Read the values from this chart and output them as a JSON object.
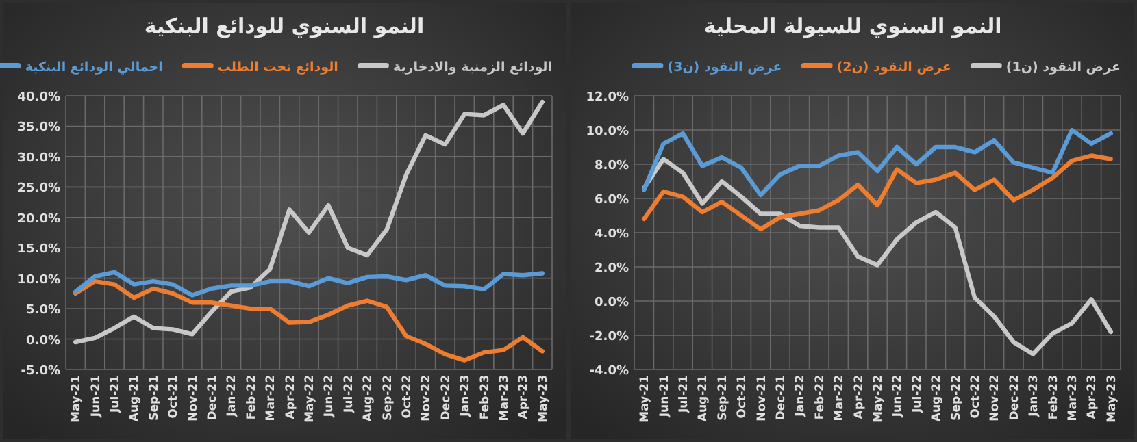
{
  "chart_data": [
    {
      "type": "line",
      "title": "النمو السنوي للودائع البنكية",
      "legend": "top",
      "grid": true,
      "categories": [
        "May-21",
        "Jun-21",
        "Jul-21",
        "Aug-21",
        "Sep-21",
        "Oct-21",
        "Nov-21",
        "Dec-21",
        "Jan-22",
        "Feb-22",
        "Mar-22",
        "Apr-22",
        "May-22",
        "Jun-22",
        "Jul-22",
        "Aug-22",
        "Sep-22",
        "Oct-22",
        "Nov-22",
        "Dec-22",
        "Jan-23",
        "Feb-23",
        "Mar-23",
        "Apr-23",
        "May-23"
      ],
      "ylim": [
        -5,
        40
      ],
      "yticks": [
        {
          "value": -5,
          "label": "-5.0%"
        },
        {
          "value": 0,
          "label": "0.0%"
        },
        {
          "value": 5,
          "label": "5.0%"
        },
        {
          "value": 10,
          "label": "10.0%"
        },
        {
          "value": 15,
          "label": "15.0%"
        },
        {
          "value": 20,
          "label": "20.0%"
        },
        {
          "value": 25,
          "label": "25.0%"
        },
        {
          "value": 30,
          "label": "30.0%"
        },
        {
          "value": 35,
          "label": "35.0%"
        },
        {
          "value": 40,
          "label": "40.0%"
        }
      ],
      "series": [
        {
          "name": "الودائع الزمنية والادخارية",
          "color": "#c8c8c8",
          "values": [
            -0.5,
            0.2,
            1.8,
            3.7,
            1.8,
            1.6,
            0.8,
            4.5,
            7.8,
            8.5,
            11.5,
            21.3,
            17.5,
            22.0,
            15.0,
            13.8,
            18.0,
            27.0,
            33.5,
            32.0,
            37.0,
            36.8,
            38.5,
            33.8,
            39.0
          ]
        },
        {
          "name": "الودائع تحت الطلب",
          "color": "#ed7d31",
          "values": [
            7.5,
            9.5,
            9.0,
            6.8,
            8.3,
            7.5,
            6.0,
            6.0,
            5.5,
            5.0,
            5.0,
            2.7,
            2.8,
            4.0,
            5.5,
            6.3,
            5.3,
            0.5,
            -0.8,
            -2.5,
            -3.5,
            -2.2,
            -1.8,
            0.3,
            -2.0
          ]
        },
        {
          "name": "اجمالي الودائع البنكية",
          "color": "#5b9bd5",
          "values": [
            7.8,
            10.3,
            11.0,
            9.0,
            9.5,
            9.0,
            7.2,
            8.3,
            8.8,
            8.8,
            9.5,
            9.5,
            8.7,
            10.0,
            9.2,
            10.2,
            10.3,
            9.7,
            10.5,
            8.8,
            8.7,
            8.2,
            10.7,
            10.5,
            10.8
          ]
        }
      ]
    },
    {
      "type": "line",
      "title": "النمو السنوي للسيولة المحلية",
      "legend": "top",
      "grid": true,
      "categories": [
        "May-21",
        "Jun-21",
        "Jul-21",
        "Aug-21",
        "Sep-21",
        "Oct-21",
        "Nov-21",
        "Dec-21",
        "Jan-22",
        "Feb-22",
        "Mar-22",
        "Apr-22",
        "May-22",
        "Jun-22",
        "Jul-22",
        "Aug-22",
        "Sep-22",
        "Oct-22",
        "Nov-22",
        "Dec-22",
        "Jan-23",
        "Feb-23",
        "Mar-23",
        "Apr-23",
        "May-23"
      ],
      "ylim": [
        -4,
        12
      ],
      "yticks": [
        {
          "value": -4,
          "label": "-4.0%"
        },
        {
          "value": -2,
          "label": "-2.0%"
        },
        {
          "value": 0,
          "label": "0.0%"
        },
        {
          "value": 2,
          "label": "2.0%"
        },
        {
          "value": 4,
          "label": "4.0%"
        },
        {
          "value": 6,
          "label": "6.0%"
        },
        {
          "value": 8,
          "label": "8.0%"
        },
        {
          "value": 10,
          "label": "10.0%"
        },
        {
          "value": 12,
          "label": "12.0%"
        }
      ],
      "series": [
        {
          "name": "عرض النقود (ن1)",
          "color": "#c8c8c8",
          "values": [
            6.6,
            8.3,
            7.5,
            5.7,
            7.0,
            6.1,
            5.1,
            5.1,
            4.4,
            4.3,
            4.3,
            2.6,
            2.1,
            3.6,
            4.6,
            5.2,
            4.3,
            0.2,
            -0.9,
            -2.4,
            -3.1,
            -1.9,
            -1.3,
            0.1,
            -1.8
          ]
        },
        {
          "name": "عرض النقود (ن2)",
          "color": "#ed7d31",
          "values": [
            4.8,
            6.4,
            6.1,
            5.2,
            5.8,
            5.0,
            4.2,
            4.9,
            5.1,
            5.3,
            5.9,
            6.8,
            5.6,
            7.7,
            6.9,
            7.1,
            7.5,
            6.5,
            7.1,
            5.9,
            6.5,
            7.2,
            8.2,
            8.5,
            8.3
          ]
        },
        {
          "name": "عرض النقود (ن3)",
          "color": "#5b9bd5",
          "values": [
            6.5,
            9.2,
            9.8,
            7.9,
            8.4,
            7.8,
            6.2,
            7.4,
            7.9,
            7.9,
            8.5,
            8.7,
            7.6,
            9.0,
            8.0,
            9.0,
            9.0,
            8.7,
            9.4,
            8.1,
            7.8,
            7.5,
            10.0,
            9.2,
            9.8
          ]
        }
      ]
    }
  ]
}
